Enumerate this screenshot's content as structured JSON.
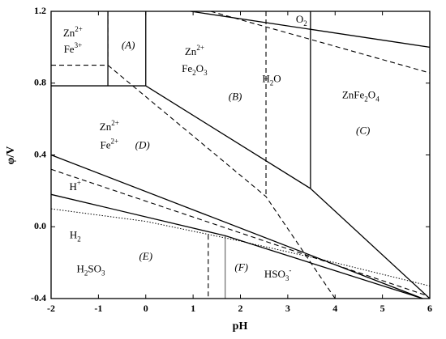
{
  "chart_data": {
    "type": "phase-diagram",
    "xlabel": "pH",
    "ylabel": "φ/V",
    "xlim": [
      -2,
      6
    ],
    "ylim": [
      -0.4,
      1.2
    ],
    "xticks": [
      -2,
      -1,
      0,
      1,
      2,
      3,
      4,
      5,
      6
    ],
    "yticks": [
      {
        "value": -0.4,
        "label": "-0.4"
      },
      {
        "value": 0,
        "label": "0.0"
      },
      0.4,
      0.8,
      1.2
    ],
    "color": "#000000",
    "lines": [
      {
        "style": "dashed",
        "x": [
          -0.8,
          -0.8
        ],
        "y": [
          1.2,
          0.9
        ]
      },
      {
        "style": "dashed",
        "x": [
          -2,
          -0.8
        ],
        "y": [
          0.9,
          0.9
        ]
      },
      {
        "style": "solid",
        "x": [
          -0.8,
          -0.8
        ],
        "y": [
          1.2,
          0.785
        ]
      },
      {
        "style": "solid",
        "x": [
          -2,
          0
        ],
        "y": [
          0.785,
          0.785
        ]
      },
      {
        "style": "solid",
        "x": [
          0,
          0
        ],
        "y": [
          1.2,
          0.785
        ]
      },
      {
        "style": "solid",
        "x": [
          0,
          3.48,
          6
        ],
        "y": [
          0.785,
          0.213,
          -0.4
        ]
      },
      {
        "style": "solid",
        "x": [
          3.48,
          3.48
        ],
        "y": [
          1.2,
          0.213
        ]
      },
      {
        "style": "dashed",
        "x": [
          -0.8,
          2.54,
          4.0
        ],
        "y": [
          0.9,
          0.168,
          -0.4
        ]
      },
      {
        "style": "dashed",
        "x": [
          2.54,
          2.54
        ],
        "y": [
          1.2,
          0.168
        ]
      },
      {
        "style": "solid",
        "x": [
          0.95,
          6
        ],
        "y": [
          1.2,
          1.0
        ]
      },
      {
        "style": "dashed",
        "x": [
          1.37,
          6
        ],
        "y": [
          1.2,
          0.857
        ]
      },
      {
        "style": "solid",
        "x": [
          -2,
          5.85
        ],
        "y": [
          0.4,
          -0.4
        ]
      },
      {
        "style": "solid",
        "x": [
          -2,
          1.68,
          5.85
        ],
        "y": [
          0.18,
          -0.05,
          -0.4
        ]
      },
      {
        "style": "dashed",
        "x": [
          -2,
          5.9
        ],
        "y": [
          0.32,
          -0.38
        ]
      },
      {
        "style": "dotted",
        "x": [
          -2,
          0,
          2,
          4,
          6
        ],
        "y": [
          0.1,
          0.03,
          -0.08,
          -0.2,
          -0.33
        ]
      },
      {
        "style": "dashed",
        "x": [
          1.32,
          1.32
        ],
        "y": [
          -0.045,
          -0.4
        ]
      },
      {
        "style": "thin",
        "x": [
          1.68,
          1.68
        ],
        "y": [
          -0.05,
          -0.4
        ]
      }
    ],
    "labels": [
      {
        "x": -1.54,
        "y": 1.074,
        "parts": [
          {
            "t": "Zn"
          },
          {
            "t": "2+",
            "s": "sup"
          }
        ]
      },
      {
        "x": -1.54,
        "y": 0.984,
        "parts": [
          {
            "t": "Fe"
          },
          {
            "t": "3+",
            "s": "sup"
          }
        ]
      },
      {
        "x": -0.37,
        "y": 1.006,
        "style": "italic",
        "parts": [
          {
            "t": "(A)"
          }
        ]
      },
      {
        "x": 1.03,
        "y": 0.97,
        "parts": [
          {
            "t": "Zn"
          },
          {
            "t": "2+",
            "s": "sup"
          }
        ]
      },
      {
        "x": 1.03,
        "y": 0.875,
        "parts": [
          {
            "t": "Fe"
          },
          {
            "t": "2",
            "s": "sub"
          },
          {
            "t": "O"
          },
          {
            "t": "3",
            "s": "sub"
          }
        ]
      },
      {
        "x": 1.89,
        "y": 0.72,
        "style": "italic",
        "parts": [
          {
            "t": "(B)"
          }
        ]
      },
      {
        "x": 2.66,
        "y": 0.82,
        "parts": [
          {
            "t": "H"
          },
          {
            "t": "2",
            "s": "sub"
          },
          {
            "t": "O"
          }
        ]
      },
      {
        "x": 3.29,
        "y": 1.15,
        "parts": [
          {
            "t": "O"
          },
          {
            "t": "2",
            "s": "sub"
          }
        ]
      },
      {
        "x": 4.54,
        "y": 0.73,
        "parts": [
          {
            "t": "ZnFe"
          },
          {
            "t": "2",
            "s": "sub"
          },
          {
            "t": "O"
          },
          {
            "t": "4",
            "s": "sub"
          }
        ]
      },
      {
        "x": 4.59,
        "y": 0.53,
        "style": "italic",
        "parts": [
          {
            "t": "(C)"
          }
        ]
      },
      {
        "x": -0.77,
        "y": 0.55,
        "parts": [
          {
            "t": "Zn"
          },
          {
            "t": "2+",
            "s": "sup"
          }
        ]
      },
      {
        "x": -0.77,
        "y": 0.45,
        "parts": [
          {
            "t": "Fe"
          },
          {
            "t": "2+",
            "s": "sup"
          }
        ]
      },
      {
        "x": -0.07,
        "y": 0.45,
        "style": "italic",
        "parts": [
          {
            "t": "(D)"
          }
        ]
      },
      {
        "x": -1.49,
        "y": 0.217,
        "parts": [
          {
            "t": "H"
          },
          {
            "t": "+",
            "s": "sup"
          }
        ]
      },
      {
        "x": -1.49,
        "y": -0.05,
        "parts": [
          {
            "t": "H"
          },
          {
            "t": "2",
            "s": "sub"
          }
        ]
      },
      {
        "x": 0.0,
        "y": -0.17,
        "style": "italic",
        "parts": [
          {
            "t": "(E)"
          }
        ]
      },
      {
        "x": -1.16,
        "y": -0.24,
        "parts": [
          {
            "t": "H"
          },
          {
            "t": "2",
            "s": "sub"
          },
          {
            "t": "SO"
          },
          {
            "t": "3",
            "s": "sub"
          }
        ]
      },
      {
        "x": 2.02,
        "y": -0.23,
        "style": "italic",
        "parts": [
          {
            "t": "(F)"
          }
        ]
      },
      {
        "x": 2.79,
        "y": -0.27,
        "parts": [
          {
            "t": "HSO"
          },
          {
            "t": "3",
            "s": "sub"
          },
          {
            "t": "-",
            "s": "sup"
          }
        ]
      }
    ]
  }
}
